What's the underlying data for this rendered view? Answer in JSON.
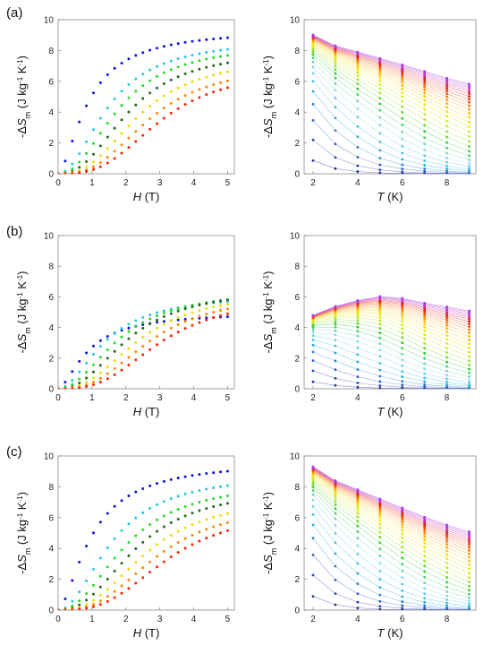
{
  "figure": {
    "panel_labels": [
      "(a)",
      "(b)",
      "(c)"
    ]
  },
  "chart_data": [
    {
      "id": "a-left",
      "type": "scatter",
      "xlabel_main": "H",
      "xlabel_unit": " (T)",
      "ylabel": {
        "prefix": "-Δ",
        "var": "S",
        "sub": "m",
        "unit": " (J kg",
        "exp1": "-1",
        "mid": " K",
        "exp2": "-1",
        "suffix": ")"
      },
      "xlim": [
        0,
        5.2
      ],
      "ylim": [
        0,
        10
      ],
      "xticks": [
        0,
        1,
        2,
        3,
        4,
        5
      ],
      "yticks": [
        0,
        2,
        4,
        6,
        8,
        10
      ],
      "grid": false,
      "model": {
        "kind": "field",
        "finals": [
          9.4,
          8.8,
          8.5,
          8.1,
          7.6,
          7.1,
          6.8
        ],
        "H0": [
          0.9,
          1.5,
          1.8,
          2.1,
          2.4,
          2.7,
          3.0
        ],
        "power": [
          1.6,
          2.0,
          2.2,
          2.4,
          2.6,
          2.8,
          3.0
        ],
        "xmax": 5
      },
      "series_colors": [
        "#1111dd",
        "#22c8e6",
        "#22dd22",
        "#226622",
        "#e8e000",
        "#ff8800",
        "#ff2200",
        "#990000"
      ]
    },
    {
      "id": "a-right",
      "type": "line",
      "xlabel_main": "T",
      "xlabel_unit": " (K)",
      "ylabel": {
        "prefix": "-Δ",
        "var": "S",
        "sub": "m",
        "unit": " (J kg",
        "exp1": "-1",
        "mid": " K",
        "exp2": "-1",
        "suffix": ")"
      },
      "xlim": [
        1.6,
        9.3
      ],
      "ylim": [
        0,
        10
      ],
      "xticks": [
        2,
        4,
        6,
        8
      ],
      "yticks": [
        0,
        2,
        4,
        6,
        8,
        10
      ],
      "grid": false,
      "model": {
        "kind": "temp",
        "top": [
          9.4,
          8.8,
          8.5,
          8.2,
          7.9,
          7.6,
          7.3,
          7.1,
          6.9
        ],
        "curves": 30,
        "fieldmax": 5
      }
    },
    {
      "id": "b-left",
      "type": "scatter",
      "xlabel_main": "H",
      "xlabel_unit": " (T)",
      "ylabel": {
        "prefix": "-Δ",
        "var": "S",
        "sub": "m",
        "unit": " (J kg",
        "exp1": "-1",
        "mid": " K",
        "exp2": "-1",
        "suffix": ")"
      },
      "xlim": [
        0,
        5.2
      ],
      "ylim": [
        0,
        10
      ],
      "xticks": [
        0,
        1,
        2,
        3,
        4,
        5
      ],
      "yticks": [
        0,
        2,
        4,
        6,
        8,
        10
      ],
      "grid": false,
      "model": {
        "kind": "field",
        "finals": [
          5.0,
          6.2,
          6.5,
          6.6,
          6.4,
          6.2,
          6.0
        ],
        "H0": [
          0.9,
          1.4,
          1.8,
          2.1,
          2.4,
          2.7,
          3.0
        ],
        "power": [
          1.6,
          1.9,
          2.1,
          2.3,
          2.5,
          2.7,
          2.9
        ],
        "xmax": 5
      },
      "series_colors": [
        "#1111dd",
        "#22c8e6",
        "#22dd22",
        "#226622",
        "#e8e000",
        "#ff8800",
        "#ff2200",
        "#990000"
      ]
    },
    {
      "id": "b-right",
      "type": "line",
      "xlabel_main": "T",
      "xlabel_unit": " (K)",
      "ylabel": {
        "prefix": "-Δ",
        "var": "S",
        "sub": "m",
        "unit": " (J kg",
        "exp1": "-1",
        "mid": " K",
        "exp2": "-1",
        "suffix": ")"
      },
      "xlim": [
        1.6,
        9.3
      ],
      "ylim": [
        0,
        10
      ],
      "xticks": [
        2,
        4,
        6,
        8
      ],
      "yticks": [
        0,
        2,
        4,
        6,
        8,
        10
      ],
      "grid": false,
      "model": {
        "kind": "temp",
        "top": [
          5.0,
          5.7,
          6.2,
          6.6,
          6.6,
          6.4,
          6.3,
          6.2,
          6.0
        ],
        "curves": 30,
        "fieldmax": 5
      }
    },
    {
      "id": "c-left",
      "type": "scatter",
      "xlabel_main": "H",
      "xlabel_unit": " (T)",
      "ylabel": {
        "prefix": "-Δ",
        "var": "S",
        "sub": "m",
        "unit": " (J kg",
        "exp1": "-1",
        "mid": " K",
        "exp2": "-1",
        "suffix": ")"
      },
      "xlim": [
        0,
        5.2
      ],
      "ylim": [
        0,
        10
      ],
      "xticks": [
        0,
        1,
        2,
        3,
        4,
        5
      ],
      "yticks": [
        0,
        2,
        4,
        6,
        8,
        10
      ],
      "grid": false,
      "model": {
        "kind": "field",
        "finals": [
          9.7,
          8.9,
          8.4,
          8.0,
          7.4,
          6.9,
          6.5
        ],
        "H0": [
          1.0,
          1.6,
          2.0,
          2.3,
          2.6,
          2.9,
          3.2
        ],
        "power": [
          1.6,
          2.0,
          2.2,
          2.4,
          2.6,
          2.8,
          3.0
        ],
        "xmax": 5
      },
      "series_colors": [
        "#1111dd",
        "#22c8e6",
        "#22dd22",
        "#226622",
        "#e8e000",
        "#ff8800",
        "#ff2200",
        "#990000"
      ]
    },
    {
      "id": "c-right",
      "type": "line",
      "xlabel_main": "T",
      "xlabel_unit": " (K)",
      "ylabel": {
        "prefix": "-Δ",
        "var": "S",
        "sub": "m",
        "unit": " (J kg",
        "exp1": "-1",
        "mid": " K",
        "exp2": "-1",
        "suffix": ")"
      },
      "xlim": [
        1.6,
        9.3
      ],
      "ylim": [
        0,
        10
      ],
      "xticks": [
        2,
        4,
        6,
        8
      ],
      "yticks": [
        0,
        2,
        4,
        6,
        8,
        10
      ],
      "grid": false,
      "model": {
        "kind": "temp",
        "top": [
          9.7,
          8.9,
          8.4,
          7.9,
          7.4,
          6.9,
          6.5,
          6.2,
          5.8
        ],
        "curves": 30,
        "fieldmax": 5
      }
    }
  ]
}
